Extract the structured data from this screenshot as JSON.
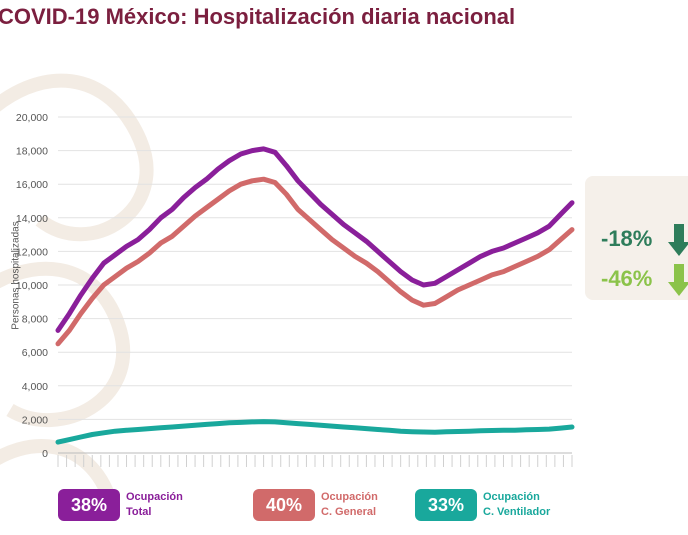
{
  "title": "COVID-19 México: Hospitalización diaria nacional",
  "colors": {
    "total": "#8a1f9a",
    "general": "#d16a6a",
    "ventilador": "#19a89c",
    "title": "#7b1f3f",
    "change_dark": "#2e7d5b",
    "change_light": "#8bc34a"
  },
  "changes": {
    "first": "-18%",
    "second": "-46%"
  },
  "legend": [
    {
      "pct": "38%",
      "line1": "Ocupación",
      "line2": "Total",
      "color": "#8a1f9a"
    },
    {
      "pct": "40%",
      "line1": "Ocupación",
      "line2": "C. General",
      "color": "#d16a6a"
    },
    {
      "pct": "33%",
      "line1": "Ocupación",
      "line2": "C. Ventilador",
      "color": "#19a89c"
    }
  ],
  "chart_data": {
    "type": "line",
    "ylabel": "Personas hospitalizadas",
    "ylim": [
      0,
      20000
    ],
    "yticks": [
      0,
      2000,
      4000,
      6000,
      8000,
      10000,
      12000,
      14000,
      16000,
      18000,
      20000
    ],
    "ytick_labels": [
      "0",
      "2,000",
      "4,000",
      "6,000",
      "8,000",
      "10,000",
      "12,000",
      "14,000",
      "16,000",
      "18,000",
      "20,000"
    ],
    "grid": true,
    "x": [
      0,
      4,
      8,
      12,
      16,
      20,
      24,
      28,
      32,
      36,
      40,
      44,
      48,
      52,
      56,
      60,
      64,
      68,
      72,
      76,
      80,
      84,
      88,
      92,
      96,
      100,
      104,
      108,
      112,
      116,
      120,
      124,
      128,
      132,
      136,
      140,
      144,
      148,
      152,
      156,
      160,
      164,
      168,
      172,
      176,
      180
    ],
    "series": [
      {
        "key": "total",
        "values": [
          7300,
          8300,
          9400,
          10400,
          11300,
          11800,
          12300,
          12700,
          13300,
          14000,
          14500,
          15200,
          15800,
          16300,
          16900,
          17400,
          17800,
          18000,
          18100,
          17900,
          17100,
          16200,
          15500,
          14800,
          14200,
          13600,
          13100,
          12600,
          12000,
          11400,
          10800,
          10300,
          10000,
          10100,
          10500,
          10900,
          11300,
          11700,
          12000,
          12200,
          12500,
          12800,
          13100,
          13500,
          14200,
          14900
        ]
      },
      {
        "key": "general",
        "values": [
          6500,
          7300,
          8300,
          9200,
          10000,
          10500,
          11000,
          11400,
          11900,
          12500,
          12900,
          13500,
          14100,
          14600,
          15100,
          15600,
          16000,
          16200,
          16300,
          16100,
          15400,
          14500,
          13900,
          13300,
          12700,
          12200,
          11700,
          11300,
          10800,
          10200,
          9600,
          9100,
          8800,
          8900,
          9300,
          9700,
          10000,
          10300,
          10600,
          10800,
          11100,
          11400,
          11700,
          12100,
          12700,
          13300
        ]
      },
      {
        "key": "ventilador",
        "values": [
          650,
          800,
          950,
          1100,
          1200,
          1300,
          1350,
          1400,
          1450,
          1500,
          1550,
          1600,
          1650,
          1700,
          1750,
          1800,
          1820,
          1850,
          1870,
          1850,
          1800,
          1750,
          1700,
          1650,
          1600,
          1550,
          1500,
          1450,
          1400,
          1350,
          1300,
          1270,
          1250,
          1240,
          1260,
          1280,
          1300,
          1320,
          1340,
          1350,
          1360,
          1380,
          1400,
          1420,
          1480,
          1550
        ]
      }
    ]
  }
}
